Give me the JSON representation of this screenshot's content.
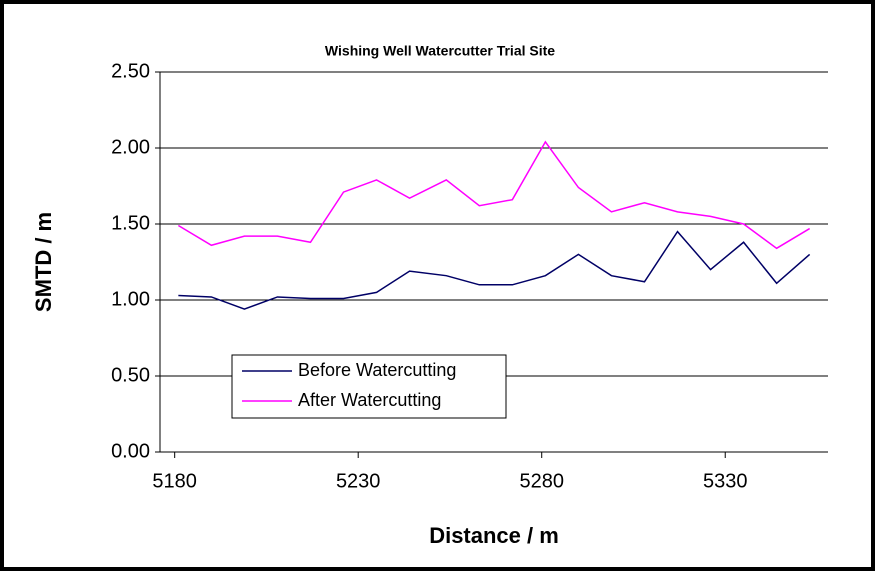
{
  "chart_data": {
    "type": "line",
    "title": "Wishing Well Watercutter Trial Site",
    "xlabel": "Distance / m",
    "ylabel": "SMTD / m",
    "x": [
      5181,
      5190,
      5199,
      5208,
      5217,
      5226,
      5235,
      5244,
      5254,
      5263,
      5272,
      5281,
      5290,
      5299,
      5308,
      5317,
      5326,
      5335,
      5344,
      5353
    ],
    "series": [
      {
        "name": "Before Watercutting",
        "color": "#000066",
        "values": [
          1.03,
          1.02,
          0.94,
          1.02,
          1.01,
          1.01,
          1.05,
          1.19,
          1.16,
          1.1,
          1.1,
          1.16,
          1.3,
          1.16,
          1.12,
          1.45,
          1.2,
          1.38,
          1.11,
          1.3
        ]
      },
      {
        "name": "After Watercutting",
        "color": "#ff00ff",
        "values": [
          1.49,
          1.36,
          1.42,
          1.42,
          1.38,
          1.71,
          1.79,
          1.67,
          1.79,
          1.62,
          1.66,
          2.04,
          1.74,
          1.58,
          1.64,
          1.58,
          1.55,
          1.5,
          1.34,
          1.47
        ]
      }
    ],
    "xlim": [
      5176,
      5358
    ],
    "xticks": [
      5180,
      5230,
      5280,
      5330
    ],
    "ylim": [
      0,
      2.5
    ],
    "yticks": [
      {
        "value": 0,
        "label": "0.00"
      },
      {
        "value": 0.5,
        "label": "0.50"
      },
      {
        "value": 1,
        "label": "1.00"
      },
      {
        "value": 1.5,
        "label": "1.50"
      },
      {
        "value": 2,
        "label": "2.00"
      },
      {
        "value": 2.5,
        "label": "2.50"
      }
    ],
    "grid": true,
    "legend": "lower left"
  }
}
